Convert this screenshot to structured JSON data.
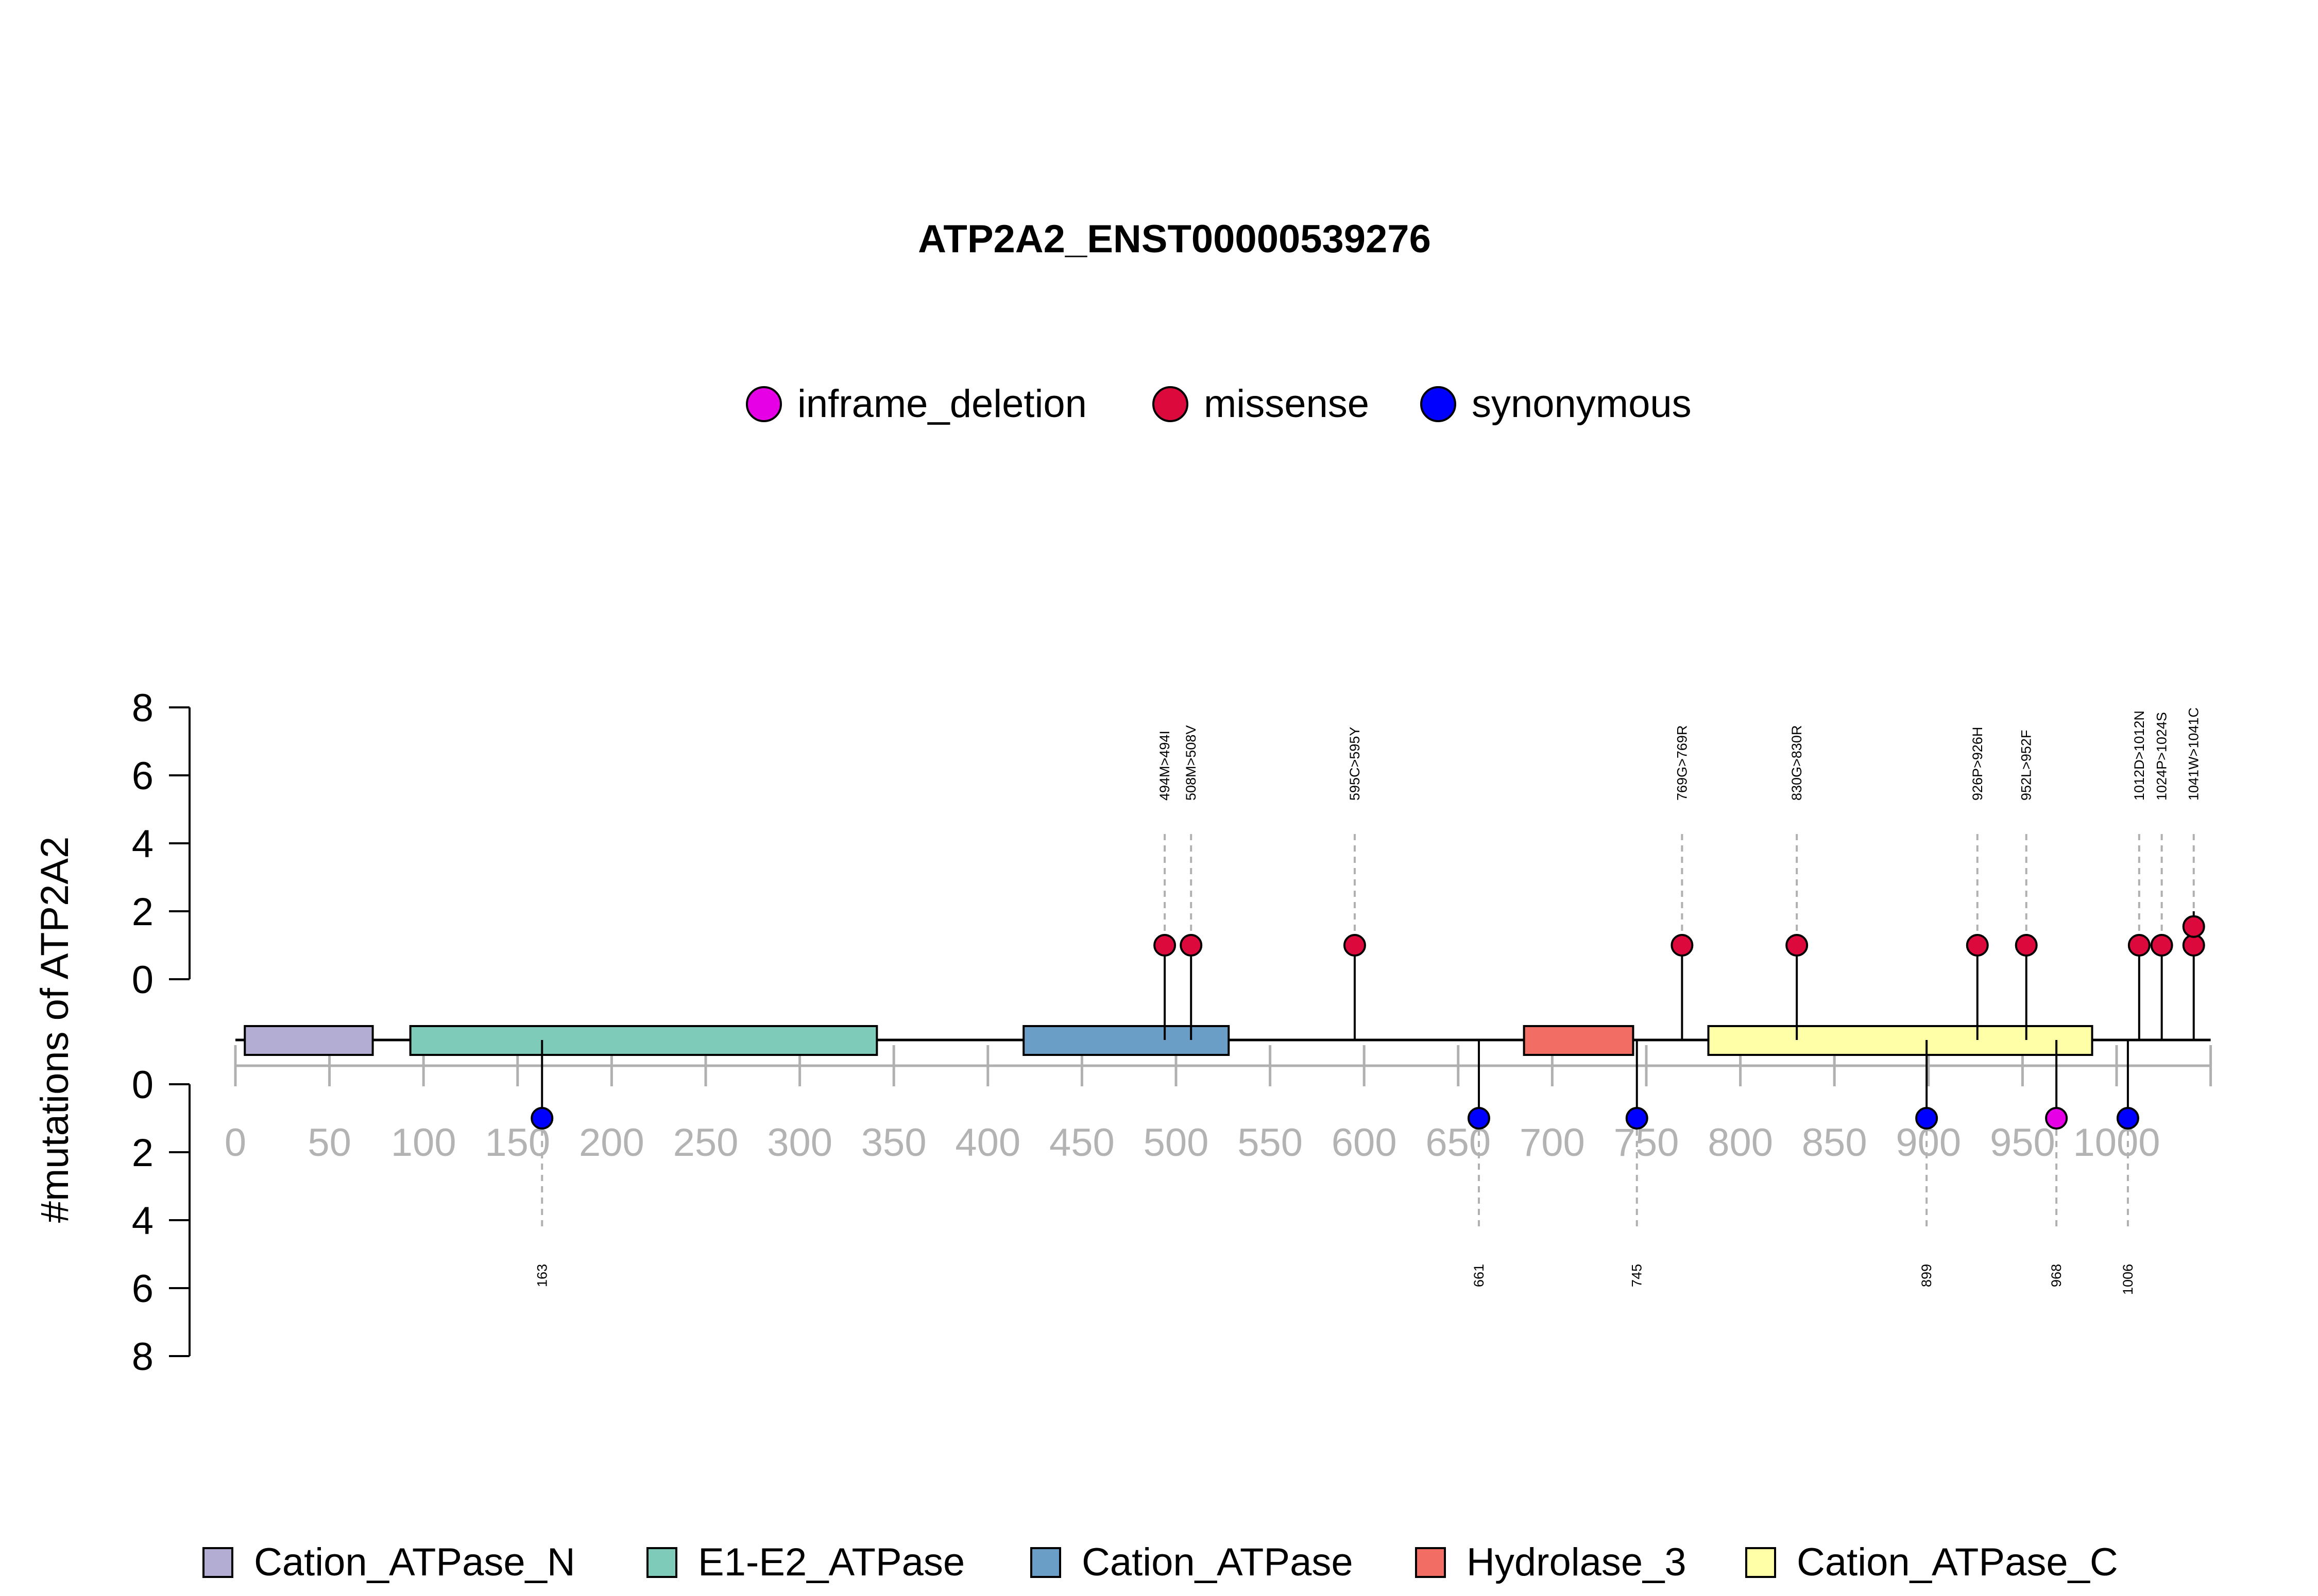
{
  "chart_data": {
    "type": "lollipop",
    "title": "ATP2A2_ENST00000539276",
    "ylabel": "#mutations of ATP2A2",
    "xlim": [
      0,
      1050
    ],
    "x_ticks": [
      0,
      50,
      100,
      150,
      200,
      250,
      300,
      350,
      400,
      450,
      500,
      550,
      600,
      650,
      700,
      750,
      800,
      850,
      900,
      950,
      1000
    ],
    "y_ticks": [
      0,
      2,
      4,
      6,
      8
    ],
    "ylim": [
      0,
      8
    ],
    "legend": [
      {
        "label": "inframe_deletion",
        "color": "#E600E6"
      },
      {
        "label": "missense",
        "color": "#DC0A3C"
      },
      {
        "label": "synonymous",
        "color": "#0000FF"
      }
    ],
    "domains": [
      {
        "name": "Cation_ATPase_N",
        "start": 5,
        "end": 73,
        "color": "#B3ADD3"
      },
      {
        "name": "E1-E2_ATPase",
        "start": 93,
        "end": 341,
        "color": "#7FCBBA"
      },
      {
        "name": "Cation_ATPase",
        "start": 419,
        "end": 528,
        "color": "#6A9EC7"
      },
      {
        "name": "Hydrolase_3",
        "start": 685,
        "end": 743,
        "color": "#F26D63"
      },
      {
        "name": "Cation_ATPase_C",
        "start": 783,
        "end": 987,
        "color": "#FFFFA8"
      }
    ],
    "upper_mutations": [
      {
        "position": 494,
        "count": 1,
        "type": "missense",
        "label": "494M>494I"
      },
      {
        "position": 508,
        "count": 1,
        "type": "missense",
        "label": "508M>508V"
      },
      {
        "position": 595,
        "count": 1,
        "type": "missense",
        "label": "595C>595Y"
      },
      {
        "position": 769,
        "count": 1,
        "type": "missense",
        "label": "769G>769R"
      },
      {
        "position": 830,
        "count": 1,
        "type": "missense",
        "label": "830G>830R"
      },
      {
        "position": 926,
        "count": 1,
        "type": "missense",
        "label": "926P>926H"
      },
      {
        "position": 952,
        "count": 1,
        "type": "missense",
        "label": "952L>952F"
      },
      {
        "position": 1012,
        "count": 1,
        "type": "missense",
        "label": "1012D>1012N"
      },
      {
        "position": 1024,
        "count": 1,
        "type": "missense",
        "label": "1024P>1024S"
      },
      {
        "position": 1041,
        "count": 2,
        "type": "missense",
        "label": "1041W>1041C"
      }
    ],
    "lower_mutations": [
      {
        "position": 163,
        "count": 1,
        "type": "synonymous",
        "label": "163"
      },
      {
        "position": 661,
        "count": 1,
        "type": "synonymous",
        "label": "661"
      },
      {
        "position": 745,
        "count": 1,
        "type": "synonymous",
        "label": "745"
      },
      {
        "position": 899,
        "count": 1,
        "type": "synonymous",
        "label": "899"
      },
      {
        "position": 968,
        "count": 1,
        "type": "inframe_deletion",
        "label": "968"
      },
      {
        "position": 1006,
        "count": 1,
        "type": "synonymous",
        "label": "1006"
      }
    ]
  }
}
